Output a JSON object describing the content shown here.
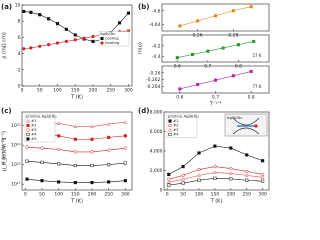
{
  "chart_data": [
    {
      "type": "line",
      "panel_label": "(a)",
      "xlabel": "T (K)",
      "ylabel": "ρ (mΩ cm)",
      "x": [
        5,
        25,
        50,
        75,
        100,
        125,
        150,
        175,
        200,
        225,
        250,
        275,
        300
      ],
      "xlim": [
        0,
        310
      ],
      "xticks": [
        0,
        50,
        100,
        150,
        200,
        250,
        300
      ],
      "ylim": [
        0,
        10
      ],
      "yticks": [
        0,
        2,
        4,
        6,
        8,
        10
      ],
      "legend": "center right",
      "legend_title": "AgSbTe₂",
      "series": [
        {
          "name": "cooling",
          "color": "#111111",
          "marker": "square",
          "filled": true,
          "values": [
            9.2,
            9.1,
            8.8,
            8.3,
            7.7,
            7.0,
            6.3,
            5.8,
            5.5,
            5.7,
            6.6,
            7.8,
            9.0
          ]
        },
        {
          "name": "heating",
          "color": "#d62020",
          "marker": "circle",
          "filled": true,
          "values": [
            4.6,
            4.7,
            4.9,
            5.1,
            5.3,
            5.5,
            5.7,
            5.9,
            6.1,
            6.3,
            6.5,
            6.7,
            6.8
          ]
        }
      ]
    },
    {
      "type": "line",
      "panel_label": "(b)",
      "ylabel": "ln(ρ)",
      "x": [
        0.25,
        0.26,
        0.27,
        0.28,
        0.29
      ],
      "xlim": [
        0.24,
        0.3
      ],
      "xticks": [
        0.26,
        0.28
      ],
      "ylim": [
        -4.66,
        -4.58
      ],
      "yticks": [
        -4.64,
        -4.6
      ],
      "series": [
        {
          "name": "AgSbTe₂",
          "color": "#e08a1e",
          "marker": "square",
          "filled": true,
          "values": [
            -4.645,
            -4.63,
            -4.615,
            -4.6,
            -4.588
          ]
        }
      ]
    },
    {
      "type": "line",
      "x": [
        0.6,
        0.65,
        0.7,
        0.75,
        0.8,
        0.85
      ],
      "xlim": [
        0.55,
        0.9
      ],
      "xticks": [
        0.6,
        0.7,
        0.8
      ],
      "ylim": [
        -4.5,
        -4.0
      ],
      "yticks": [
        -4.4,
        -4.2
      ],
      "annotation": "57 K",
      "series": [
        {
          "name": "AgSbTe₂",
          "color": "#2a9a2a",
          "marker": "square",
          "filled": true,
          "values": [
            -4.42,
            -4.36,
            -4.3,
            -4.24,
            -4.18,
            -4.12
          ]
        }
      ]
    },
    {
      "type": "line",
      "xlabel": "T⁻¹ᐟ⁴",
      "x": [
        0.6,
        0.65,
        0.7,
        0.75,
        0.8
      ],
      "xlim": [
        0.55,
        0.85
      ],
      "xticks": [
        0.6,
        0.7,
        0.8
      ],
      "ylim": [
        -0.266,
        -0.258
      ],
      "yticks": [
        -0.264,
        -0.262,
        -0.26
      ],
      "annotation": "77 K",
      "series": [
        {
          "name": "AgSbTe₂",
          "color": "#b02aa8",
          "marker": "square",
          "filled": true,
          "values": [
            -0.2648,
            -0.2635,
            -0.2622,
            -0.2609,
            -0.2596
          ]
        }
      ]
    },
    {
      "type": "line",
      "panel_label": "(c)",
      "xlabel": "T (K)",
      "ylabel": "n_H (cm⁻³)",
      "log_y": true,
      "x": [
        5,
        50,
        100,
        150,
        200,
        250,
        300
      ],
      "xlim": [
        -10,
        320
      ],
      "xticks": [
        0,
        50,
        100,
        150,
        200,
        250,
        300
      ],
      "ylim": [
        5e+16,
        5e+20
      ],
      "yticks": [
        {
          "value": 1e+17,
          "label": "10¹⁷"
        },
        {
          "value": 1e+18,
          "label": "10¹⁸"
        },
        {
          "value": 1e+19,
          "label": "10¹⁹"
        },
        {
          "value": 1e+20,
          "label": "10²⁰"
        }
      ],
      "legend": "upper left",
      "legend_title": "pristine AgSbTe₂",
      "series": [
        {
          "name": "#1",
          "color": "#e05050",
          "marker": "triangle",
          "filled": false,
          "values": [
            1.6e+20,
            1.5e+20,
            1.3e+20,
            9e+19,
            9e+19,
            1.2e+20,
            1.5e+20
          ]
        },
        {
          "name": "#2",
          "color": "#d62020",
          "marker": "square",
          "filled": true,
          "values": [
            4e+19,
            3.5e+19,
            3e+19,
            2e+19,
            2e+19,
            2.5e+19,
            3e+19
          ]
        },
        {
          "name": "#3",
          "color": "#d62020",
          "marker": "circle",
          "filled": false,
          "values": [
            8e+18,
            7e+18,
            6e+18,
            4.5e+18,
            4.5e+18,
            5.5e+18,
            7e+18
          ]
        },
        {
          "name": "#4",
          "color": "#111111",
          "marker": "square",
          "filled": false,
          "values": [
            1.5e+18,
            1.3e+18,
            1.1e+18,
            9e+17,
            9e+17,
            1e+18,
            1.2e+18
          ]
        },
        {
          "name": "#5",
          "color": "#111111",
          "marker": "square",
          "filled": true,
          "values": [
            1.8e+17,
            1.5e+17,
            1.3e+17,
            1.2e+17,
            1.2e+17,
            1.3e+17,
            1.5e+17
          ]
        }
      ]
    },
    {
      "type": "line",
      "panel_label": "(d)",
      "xlabel": "T (K)",
      "ylabel": "μ_H (cm²V⁻¹s⁻¹)",
      "x": [
        5,
        50,
        100,
        150,
        200,
        250,
        300
      ],
      "xlim": [
        -10,
        320
      ],
      "xticks": [
        0,
        50,
        100,
        150,
        200,
        250,
        300
      ],
      "ylim": [
        0,
        8000
      ],
      "yticks": [
        0,
        {
          "value": 2000,
          "label": "2,000"
        },
        {
          "value": 4000,
          "label": "4,000"
        },
        {
          "value": 6000,
          "label": "6,000"
        },
        {
          "value": 8000,
          "label": "8,000"
        }
      ],
      "legend": "upper left",
      "legend_title": "pristine AgSbTe₂",
      "inset_title": "AgSbTe₂",
      "series": [
        {
          "name": "#1",
          "color": "#111111",
          "marker": "square",
          "filled": true,
          "values": [
            1600,
            2400,
            3800,
            4500,
            4300,
            3600,
            3000
          ]
        },
        {
          "name": "#2",
          "color": "#d62020",
          "marker": "circle",
          "filled": false,
          "values": [
            1100,
            1500,
            2100,
            2400,
            2200,
            1900,
            1600
          ]
        },
        {
          "name": "#3",
          "color": "#e05050",
          "marker": "triangle",
          "filled": false,
          "values": [
            800,
            1100,
            1500,
            1800,
            1700,
            1500,
            1300
          ]
        },
        {
          "name": "#4",
          "color": "#111111",
          "marker": "square",
          "filled": false,
          "values": [
            500,
            700,
            1000,
            1200,
            1150,
            1000,
            900
          ]
        }
      ]
    }
  ]
}
